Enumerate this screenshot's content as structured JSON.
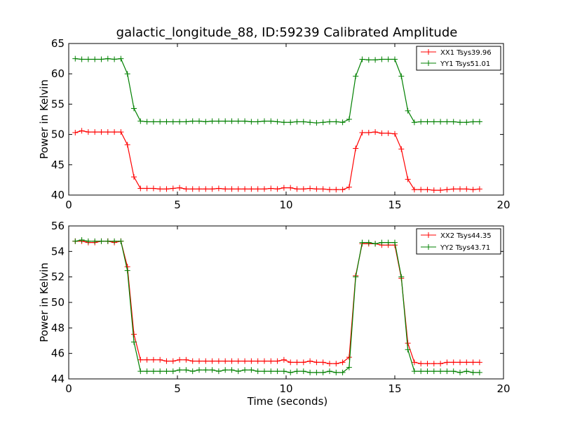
{
  "chart_data": [
    {
      "type": "line",
      "title": "galactic_longitude_88, ID:59239 Calibrated Amplitude",
      "xlabel": "",
      "ylabel": "Power in Kelvin",
      "xlim": [
        0,
        20
      ],
      "ylim": [
        40,
        65
      ],
      "xticks": [
        "0",
        "5",
        "10",
        "15",
        "20"
      ],
      "yticks": [
        "40",
        "45",
        "50",
        "55",
        "60",
        "65"
      ],
      "legend_position": "top-right",
      "grid": false,
      "x": [
        0.3,
        0.6,
        0.9,
        1.2,
        1.5,
        1.8,
        2.1,
        2.4,
        2.7,
        3.0,
        3.3,
        3.6,
        3.9,
        4.2,
        4.5,
        4.8,
        5.1,
        5.4,
        5.7,
        6.0,
        6.3,
        6.6,
        6.9,
        7.2,
        7.5,
        7.8,
        8.1,
        8.4,
        8.7,
        9.0,
        9.3,
        9.6,
        9.9,
        10.2,
        10.5,
        10.8,
        11.1,
        11.4,
        11.7,
        12.0,
        12.3,
        12.6,
        12.9,
        13.2,
        13.5,
        13.8,
        14.1,
        14.4,
        14.7,
        15.0,
        15.3,
        15.6,
        15.9,
        16.2,
        16.5,
        16.8,
        17.1,
        17.4,
        17.7,
        18.0,
        18.3,
        18.6,
        18.9
      ],
      "series": [
        {
          "name": "XX1 Tsys39.96",
          "color": "#ff0000",
          "values": [
            50.3,
            50.6,
            50.4,
            50.4,
            50.4,
            50.4,
            50.4,
            50.4,
            48.3,
            43.0,
            41.1,
            41.1,
            41.1,
            41.0,
            41.0,
            41.1,
            41.2,
            41.0,
            41.0,
            41.0,
            41.0,
            41.0,
            41.1,
            41.0,
            41.0,
            41.0,
            41.0,
            41.0,
            41.0,
            41.0,
            41.1,
            41.0,
            41.2,
            41.2,
            41.0,
            41.0,
            41.1,
            41.0,
            41.0,
            40.9,
            40.9,
            40.9,
            41.3,
            47.7,
            50.3,
            50.3,
            50.4,
            50.2,
            50.2,
            50.1,
            47.6,
            42.6,
            40.9,
            40.9,
            40.9,
            40.8,
            40.8,
            40.9,
            41.0,
            41.0,
            41.0,
            40.9,
            41.0
          ]
        },
        {
          "name": "YY1 Tsys51.01",
          "color": "#008000",
          "values": [
            62.5,
            62.4,
            62.4,
            62.4,
            62.4,
            62.5,
            62.4,
            62.5,
            60.0,
            54.3,
            52.2,
            52.1,
            52.1,
            52.1,
            52.1,
            52.1,
            52.1,
            52.1,
            52.2,
            52.2,
            52.1,
            52.2,
            52.2,
            52.2,
            52.2,
            52.2,
            52.2,
            52.1,
            52.1,
            52.2,
            52.2,
            52.1,
            52.0,
            52.0,
            52.1,
            52.1,
            52.0,
            51.9,
            52.0,
            52.1,
            52.1,
            52.0,
            52.5,
            59.6,
            62.4,
            62.3,
            62.3,
            62.4,
            62.4,
            62.4,
            59.6,
            53.9,
            52.0,
            52.1,
            52.1,
            52.1,
            52.1,
            52.1,
            52.1,
            52.0,
            52.0,
            52.1,
            52.1
          ]
        }
      ]
    },
    {
      "type": "line",
      "title": "",
      "xlabel": "Time (seconds)",
      "ylabel": "Power in Kelvin",
      "xlim": [
        0,
        20
      ],
      "ylim": [
        44,
        56
      ],
      "xticks": [
        "0",
        "5",
        "10",
        "15",
        "20"
      ],
      "yticks": [
        "44",
        "46",
        "48",
        "50",
        "52",
        "54",
        "56"
      ],
      "legend_position": "top-right",
      "grid": false,
      "x": [
        0.3,
        0.6,
        0.9,
        1.2,
        1.5,
        1.8,
        2.1,
        2.4,
        2.7,
        3.0,
        3.3,
        3.6,
        3.9,
        4.2,
        4.5,
        4.8,
        5.1,
        5.4,
        5.7,
        6.0,
        6.3,
        6.6,
        6.9,
        7.2,
        7.5,
        7.8,
        8.1,
        8.4,
        8.7,
        9.0,
        9.3,
        9.6,
        9.9,
        10.2,
        10.5,
        10.8,
        11.1,
        11.4,
        11.7,
        12.0,
        12.3,
        12.6,
        12.9,
        13.2,
        13.5,
        13.8,
        14.1,
        14.4,
        14.7,
        15.0,
        15.3,
        15.6,
        15.9,
        16.2,
        16.5,
        16.8,
        17.1,
        17.4,
        17.7,
        18.0,
        18.3,
        18.6,
        18.9
      ],
      "series": [
        {
          "name": "XX2 Tsys44.35",
          "color": "#ff0000",
          "values": [
            54.8,
            54.8,
            54.7,
            54.7,
            54.8,
            54.8,
            54.7,
            54.8,
            52.8,
            47.5,
            45.5,
            45.5,
            45.5,
            45.5,
            45.4,
            45.4,
            45.5,
            45.5,
            45.4,
            45.4,
            45.4,
            45.4,
            45.4,
            45.4,
            45.4,
            45.4,
            45.4,
            45.4,
            45.4,
            45.4,
            45.4,
            45.4,
            45.5,
            45.3,
            45.3,
            45.3,
            45.4,
            45.3,
            45.3,
            45.2,
            45.2,
            45.3,
            45.7,
            52.1,
            54.6,
            54.6,
            54.6,
            54.5,
            54.5,
            54.5,
            51.9,
            46.8,
            45.3,
            45.2,
            45.2,
            45.2,
            45.2,
            45.3,
            45.3,
            45.3,
            45.3,
            45.3,
            45.3
          ]
        },
        {
          "name": "YY2 Tsys43.71",
          "color": "#008000",
          "values": [
            54.8,
            54.9,
            54.8,
            54.8,
            54.8,
            54.8,
            54.8,
            54.8,
            52.5,
            46.9,
            44.6,
            44.6,
            44.6,
            44.6,
            44.6,
            44.6,
            44.7,
            44.7,
            44.6,
            44.7,
            44.7,
            44.7,
            44.6,
            44.7,
            44.7,
            44.6,
            44.7,
            44.7,
            44.6,
            44.6,
            44.6,
            44.6,
            44.6,
            44.5,
            44.6,
            44.6,
            44.5,
            44.5,
            44.5,
            44.6,
            44.5,
            44.5,
            44.9,
            52.0,
            54.7,
            54.7,
            54.6,
            54.7,
            54.7,
            54.7,
            52.0,
            46.3,
            44.6,
            44.6,
            44.6,
            44.6,
            44.6,
            44.6,
            44.6,
            44.5,
            44.6,
            44.5,
            44.5
          ]
        }
      ]
    }
  ]
}
